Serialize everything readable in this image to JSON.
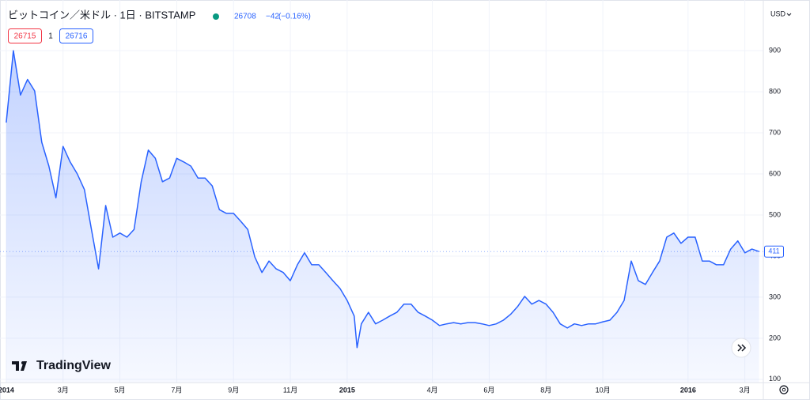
{
  "chart_data": {
    "type": "area",
    "title": "ビットコイン／米ドル · 1日 · BITSTAMP",
    "quote": {
      "last": "26708",
      "change": "−42",
      "change_pct": "(−0.16%)"
    },
    "bid": "26715",
    "spread": "1",
    "ask": "26716",
    "currency": "USD",
    "brand": "TradingView",
    "color": "#2962ff",
    "x": [
      0,
      0.25,
      0.5,
      0.75,
      1,
      1.25,
      1.5,
      1.75,
      2,
      2.25,
      2.5,
      2.75,
      3,
      3.25,
      3.5,
      3.75,
      4,
      4.25,
      4.5,
      4.75,
      5,
      5.25,
      5.5,
      5.75,
      6,
      6.25,
      6.5,
      6.75,
      7,
      7.25,
      7.5,
      7.75,
      8,
      8.25,
      8.5,
      8.75,
      9,
      9.25,
      9.5,
      9.75,
      10,
      10.25,
      10.5,
      10.75,
      11,
      11.25,
      11.5,
      11.75,
      12,
      12.25,
      12.35,
      12.5,
      12.75,
      13,
      13.25,
      13.5,
      13.75,
      14,
      14.25,
      14.5,
      14.75,
      15,
      15.25,
      15.5,
      15.75,
      16,
      16.25,
      16.5,
      16.75,
      17,
      17.25,
      17.5,
      17.75,
      18,
      18.25,
      18.5,
      18.75,
      19,
      19.25,
      19.5,
      19.75,
      20,
      20.25,
      20.5,
      20.75,
      21,
      21.25,
      21.5,
      21.75,
      22,
      22.25,
      22.5,
      22.75,
      23,
      23.25,
      23.5,
      23.75,
      24,
      24.25,
      24.5,
      24.75,
      25,
      25.25,
      25.5,
      25.75,
      26,
      26.25,
      26.5
    ],
    "values": [
      725,
      900,
      792,
      830,
      802,
      677,
      619,
      542,
      667,
      629,
      600,
      562,
      465,
      369,
      523,
      446,
      456,
      446,
      465,
      581,
      658,
      638,
      581,
      590,
      638,
      629,
      619,
      590,
      590,
      571,
      513,
      504,
      504,
      485,
      465,
      398,
      360,
      388,
      369,
      360,
      340,
      379,
      408,
      379,
      379,
      360,
      340,
      321,
      292,
      254,
      177,
      235,
      263,
      235,
      244,
      254,
      263,
      283,
      283,
      263,
      254,
      244,
      231,
      235,
      238,
      235,
      238,
      238,
      235,
      231,
      235,
      244,
      258,
      277,
      302,
      283,
      292,
      283,
      263,
      235,
      225,
      235,
      231,
      235,
      235,
      240,
      244,
      263,
      292,
      388,
      340,
      331,
      360,
      388,
      446,
      456,
      431,
      446,
      446,
      388,
      388,
      379,
      379,
      417,
      437,
      408,
      417,
      411
    ],
    "xlim": [
      -0.22,
      26.65
    ],
    "xticks": [
      {
        "value": 0,
        "label": "2014"
      },
      {
        "value": 2,
        "label": "3月"
      },
      {
        "value": 4,
        "label": "5月"
      },
      {
        "value": 6,
        "label": "7月"
      },
      {
        "value": 8,
        "label": "9月"
      },
      {
        "value": 10,
        "label": "11月"
      },
      {
        "value": 12,
        "label": "2015"
      },
      {
        "value": 15,
        "label": "4月"
      },
      {
        "value": 17,
        "label": "6月"
      },
      {
        "value": 19,
        "label": "8月"
      },
      {
        "value": 21,
        "label": "10月"
      },
      {
        "value": 24,
        "label": "2016"
      },
      {
        "value": 26,
        "label": "3月"
      }
    ],
    "ylim": [
      92,
      1008
    ],
    "yticks": [
      100,
      200,
      300,
      400,
      500,
      600,
      700,
      800,
      900
    ],
    "grid": true
  }
}
